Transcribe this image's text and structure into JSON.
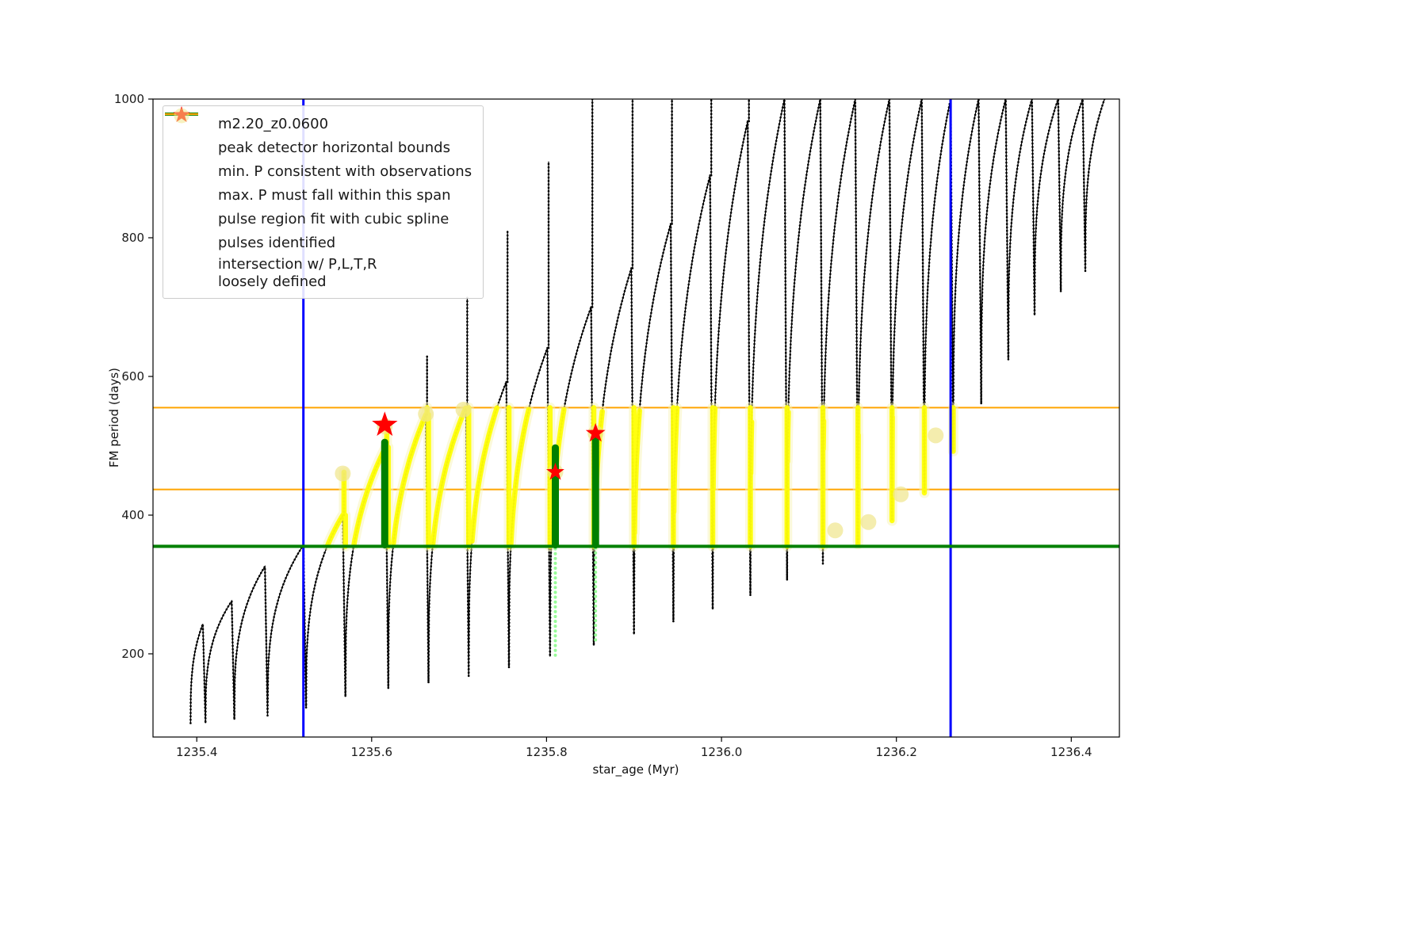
{
  "figure": {
    "xlabel": "star_age (Myr)",
    "ylabel": "FM period (days)"
  },
  "colors": {
    "black": "#000000",
    "blue": "#0000ff",
    "green": "#008000",
    "orange": "#ffa500",
    "yellow": "#ffff00",
    "palegreen": "#98fb98",
    "khaki": "#f0e68c",
    "halo": "#f7f3b5",
    "red": "#ff0000"
  },
  "legend": {
    "items": [
      {
        "label": "m2.20_z0.0600",
        "symbol": "line-with-dot",
        "color": "#000000"
      },
      {
        "label": "peak detector horizontal bounds",
        "symbol": "thick-line",
        "color": "#0000ff"
      },
      {
        "label": "min. P consistent with observations",
        "symbol": "thick-line",
        "color": "#008000"
      },
      {
        "label": "max. P must fall within this span",
        "symbol": "line",
        "color": "#ffa500"
      },
      {
        "label": "pulse region fit with cubic spline",
        "symbol": "small-dot",
        "color": "#98fb98"
      },
      {
        "label": "pulses identified",
        "symbol": "star",
        "color": "#ff0000"
      },
      {
        "label": "intersection w/ P,L,T,R\nloosely defined",
        "symbol": "big-dot",
        "color": "#f0e68c"
      }
    ]
  },
  "chart_data": {
    "type": "line",
    "title": "",
    "xlabel": "star_age (Myr)",
    "ylabel": "FM period (days)",
    "series_name": "m2.20_z0.0600",
    "xlim": [
      1235.35,
      1236.455
    ],
    "ylim": [
      80,
      1000
    ],
    "xticks": [
      1235.4,
      1235.6,
      1235.8,
      1236.0,
      1236.2,
      1236.4
    ],
    "yticks": [
      200,
      400,
      600,
      800,
      1000
    ],
    "peak_detector_bounds_x": [
      1235.522,
      1236.262
    ],
    "min_P_line_y": 355,
    "max_P_span_y": [
      437,
      555
    ],
    "highlight_band_y": [
      355,
      555
    ],
    "highlight_x_range": [
      1235.53,
      1236.27
    ],
    "pulses_identified": [
      [
        1235.615,
        530
      ],
      [
        1235.81,
        462
      ],
      [
        1235.856,
        518
      ]
    ],
    "pulse_marker_sizes": [
      17,
      12,
      13
    ],
    "spline_fit_bars": [
      {
        "x": 1235.615,
        "y0": 357,
        "y1": 505
      },
      {
        "x": 1235.81,
        "y0": 357,
        "y1": 497
      },
      {
        "x": 1235.856,
        "y0": 357,
        "y1": 510
      }
    ],
    "spline_fit_tails": [
      {
        "x": 1235.81,
        "y0": 198,
        "y1": 355
      },
      {
        "x": 1235.856,
        "y0": 220,
        "y1": 355
      }
    ],
    "intersection_blobs": [
      [
        1235.567,
        460
      ],
      [
        1235.615,
        528
      ],
      [
        1235.662,
        546
      ],
      [
        1235.705,
        552
      ],
      [
        1235.81,
        462
      ],
      [
        1235.856,
        518
      ],
      [
        1236.13,
        378
      ],
      [
        1236.168,
        390
      ],
      [
        1236.205,
        430
      ],
      [
        1236.245,
        515
      ]
    ],
    "cycles": [
      [
        1235.393,
        1235.407,
        100,
        243,
        0
      ],
      [
        1235.41,
        1235.44,
        100,
        276,
        0
      ],
      [
        1235.443,
        1235.478,
        105,
        326,
        0
      ],
      [
        1235.481,
        1235.522,
        111,
        357,
        0
      ],
      [
        1235.525,
        1235.567,
        122,
        400,
        462
      ],
      [
        1235.57,
        1235.616,
        138,
        498,
        532
      ],
      [
        1235.619,
        1235.662,
        150,
        545,
        630
      ],
      [
        1235.665,
        1235.708,
        158,
        556,
        715
      ],
      [
        1235.711,
        1235.754,
        168,
        592,
        810
      ],
      [
        1235.757,
        1235.801,
        180,
        641,
        910
      ],
      [
        1235.804,
        1235.851,
        196,
        700,
        1000
      ],
      [
        1235.854,
        1235.897,
        212,
        756,
        1000
      ],
      [
        1235.9,
        1235.942,
        228,
        820,
        1000
      ],
      [
        1235.945,
        1235.987,
        246,
        890,
        1000
      ],
      [
        1235.99,
        1236.03,
        264,
        968,
        1000
      ],
      [
        1236.033,
        1236.072,
        284,
        1000,
        0
      ],
      [
        1236.075,
        1236.113,
        306,
        1000,
        0
      ],
      [
        1236.116,
        1236.153,
        330,
        1000,
        0
      ],
      [
        1236.156,
        1236.192,
        358,
        1000,
        0
      ],
      [
        1236.195,
        1236.229,
        392,
        1000,
        0
      ],
      [
        1236.232,
        1236.262,
        432,
        1000,
        0
      ],
      [
        1236.265,
        1236.294,
        492,
        1000,
        0
      ],
      [
        1236.297,
        1236.325,
        560,
        1000,
        0
      ],
      [
        1236.328,
        1236.355,
        624,
        1000,
        0
      ],
      [
        1236.358,
        1236.385,
        688,
        1000,
        0
      ],
      [
        1236.388,
        1236.413,
        722,
        1000,
        0
      ],
      [
        1236.416,
        1236.438,
        752,
        1000,
        0
      ]
    ]
  }
}
